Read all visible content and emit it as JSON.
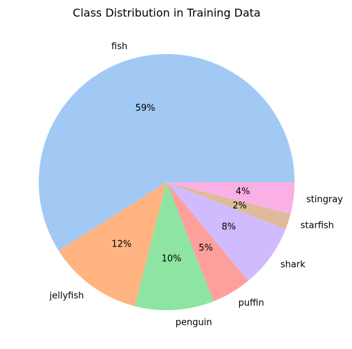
{
  "chart_data": {
    "type": "pie",
    "title": "Class Distribution in Training Data",
    "start_angle_deg": 0,
    "direction": "counterclockwise",
    "slices": [
      {
        "label": "fish",
        "value": 59,
        "pct_label": "59%",
        "color": "#a1c9f4"
      },
      {
        "label": "jellyfish",
        "value": 12,
        "pct_label": "12%",
        "color": "#ffb482"
      },
      {
        "label": "penguin",
        "value": 10,
        "pct_label": "10%",
        "color": "#8de5a1"
      },
      {
        "label": "puffin",
        "value": 5,
        "pct_label": "5%",
        "color": "#ff9f9b"
      },
      {
        "label": "shark",
        "value": 8,
        "pct_label": "8%",
        "color": "#d0bbff"
      },
      {
        "label": "starfish",
        "value": 2,
        "pct_label": "2%",
        "color": "#debb9b"
      },
      {
        "label": "stingray",
        "value": 4,
        "pct_label": "4%",
        "color": "#fab0e4"
      }
    ]
  }
}
